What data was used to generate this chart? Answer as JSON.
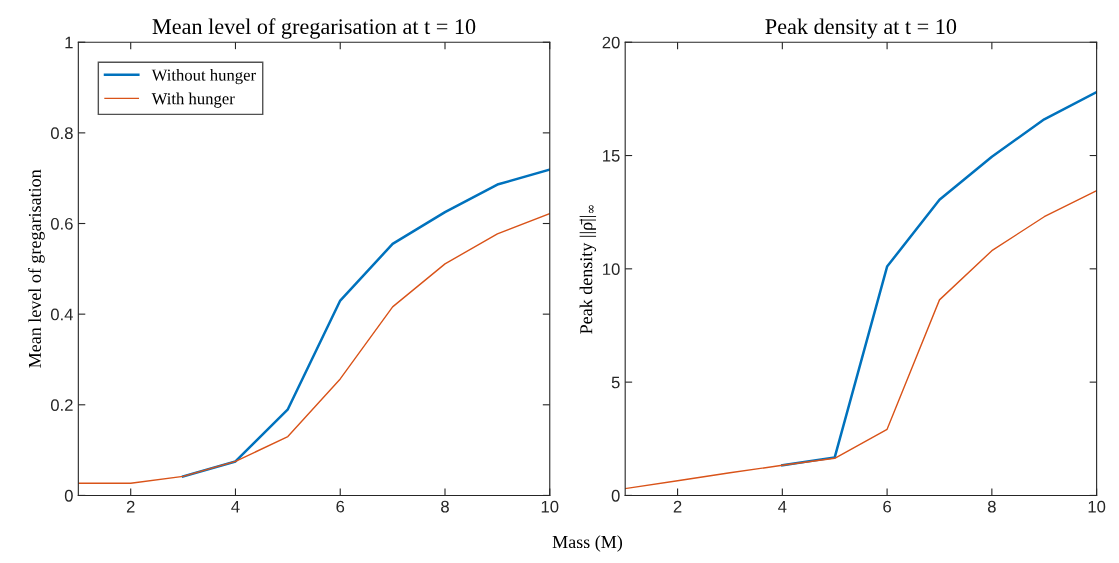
{
  "chart_data": [
    {
      "type": "line",
      "title": "Mean level of gregarisation at t = 10",
      "ylabel": "Mean level of gregarisation",
      "xlabel": "Mass (M)",
      "x": [
        1,
        2,
        3,
        4,
        5,
        6,
        7,
        8,
        9,
        10
      ],
      "xlim": [
        1,
        10
      ],
      "xticks": [
        2,
        4,
        6,
        8,
        10
      ],
      "ylim": [
        0,
        1
      ],
      "yticks": [
        0,
        0.2,
        0.4,
        0.6,
        0.8,
        1
      ],
      "legend": "top left",
      "grid": false,
      "series": [
        {
          "name": "Without hunger",
          "color": "#0072bd",
          "values": [
            null,
            null,
            0.042,
            0.075,
            0.19,
            0.43,
            0.555,
            0.625,
            0.686,
            0.719
          ]
        },
        {
          "name": "With hunger",
          "color": "#d95319",
          "values": [
            0.027,
            0.027,
            0.042,
            0.075,
            0.13,
            0.257,
            0.416,
            0.511,
            0.577,
            0.622
          ]
        }
      ]
    },
    {
      "type": "line",
      "title": "Peak density at t = 10",
      "ylabel": "Peak density ||ρ̄||$_{∞}$",
      "x": [
        1,
        2,
        3,
        4,
        5,
        6,
        7,
        8,
        9,
        10
      ],
      "xlim": [
        1,
        10
      ],
      "xticks": [
        2,
        4,
        6,
        8,
        10
      ],
      "ylim": [
        0,
        20
      ],
      "yticks": [
        0,
        5,
        10,
        15,
        20
      ],
      "grid": false,
      "series": [
        {
          "color": "#0072bd",
          "values": [
            null,
            null,
            null,
            1.33,
            1.68,
            10.1,
            13.05,
            14.95,
            16.6,
            17.8
          ]
        },
        {
          "color": "#d95319",
          "values": [
            0.3,
            0.65,
            1.0,
            1.33,
            1.64,
            2.92,
            8.63,
            10.8,
            12.3,
            13.45
          ]
        }
      ]
    }
  ]
}
